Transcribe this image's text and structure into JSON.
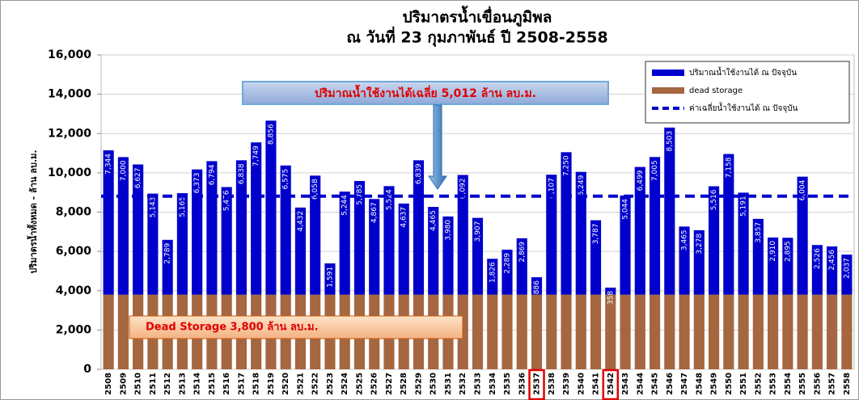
{
  "chart_data": {
    "type": "stacked_bar",
    "title": "ปริมาตรน้ำเขื่อนภูมิพล",
    "subtitle": "ณ วันที่ 23 กุมภาพันธ์ ปี 2508-2558",
    "y_label": "ปริมาตรน้ำทั้งหมด - ล้าน ลบ.ม.",
    "categories": [
      "2508",
      "2509",
      "2510",
      "2511",
      "2512",
      "2513",
      "2514",
      "2515",
      "2516",
      "2517",
      "2518",
      "2519",
      "2520",
      "2521",
      "2522",
      "2523",
      "2524",
      "2525",
      "2526",
      "2527",
      "2528",
      "2529",
      "2530",
      "2531",
      "2532",
      "2533",
      "2534",
      "2535",
      "2536",
      "2537",
      "2538",
      "2539",
      "2540",
      "2541",
      "2542",
      "2543",
      "2544",
      "2545",
      "2546",
      "2547",
      "2548",
      "2549",
      "2550",
      "2551",
      "2552",
      "2553",
      "2554",
      "2555",
      "2556",
      "2557",
      "2558"
    ],
    "highlight": [
      "2537",
      "2542"
    ],
    "series": [
      {
        "name": "dead storage",
        "color": "#a5673f",
        "values": [
          3800,
          3800,
          3800,
          3800,
          3800,
          3800,
          3800,
          3800,
          3800,
          3800,
          3800,
          3800,
          3800,
          3800,
          3800,
          3800,
          3800,
          3800,
          3800,
          3800,
          3800,
          3800,
          3800,
          3800,
          3800,
          3800,
          3800,
          3800,
          3800,
          3800,
          3800,
          3800,
          3800,
          3800,
          3800,
          3800,
          3800,
          3800,
          3800,
          3800,
          3800,
          3800,
          3800,
          3800,
          3800,
          3800,
          3800,
          3800,
          3800,
          3800,
          3800
        ]
      },
      {
        "name": "ปริมาณน้ำใช้งานได้ ณ ปัจจุบัน",
        "color": "#0000cc",
        "values": [
          7344,
          7000,
          6627,
          5143,
          2789,
          5165,
          6373,
          6794,
          5476,
          6838,
          7749,
          8856,
          6575,
          4432,
          6058,
          1591,
          5244,
          5785,
          4867,
          5524,
          4637,
          6839,
          4465,
          3980,
          6092,
          3907,
          1826,
          2289,
          2869,
          886,
          6107,
          7250,
          6249,
          3787,
          358,
          5044,
          6499,
          7005,
          8503,
          3465,
          3278,
          5516,
          7158,
          5191,
          3857,
          2910,
          2895,
          6004,
          2526,
          2456,
          2037
        ],
        "value_labels": [
          "7,344",
          "7,000",
          "6,627",
          "5,143",
          "2,789",
          "5,165",
          "6,373",
          "6,794",
          "5,476",
          "6,838",
          "7,749",
          "8,856",
          "6,575",
          "4,432",
          "6,058",
          "1,591",
          "5,244",
          "5,785",
          "4,867",
          "5,524",
          "4,637",
          "6,839",
          "4,465",
          "3,980",
          "6,092",
          "3,907",
          "1,826",
          "2,289",
          "2,869",
          "886",
          "6,107",
          "7,250",
          "6,249",
          "3,787",
          "358",
          "5,044",
          "6,499",
          "7,005",
          "8,503",
          "3,465",
          "3,278",
          "5,516",
          "7,158",
          "5,191",
          "3,857",
          "2,910",
          "2,895",
          "6,004",
          "2,526",
          "2,456",
          "2,037"
        ]
      }
    ],
    "reference_line": {
      "name": "ค่าเฉลี่ยน้ำใช้งานได้ ณ ปัจจุบัน",
      "value": 8812,
      "color": "#0000cc"
    },
    "annotations": [
      "ปริมาณน้ำใช้งานได้เฉลี่ย 5,012 ล้าน ลบ.ม.",
      "Dead Storage 3,800 ล้าน ลบ.ม."
    ],
    "ylim": [
      0,
      16000
    ],
    "yticks": [
      {
        "value": 0,
        "label": "0"
      },
      {
        "value": 2000,
        "label": "2,000"
      },
      {
        "value": 4000,
        "label": "4,000"
      },
      {
        "value": 6000,
        "label": "6,000"
      },
      {
        "value": 8000,
        "label": "8,000"
      },
      {
        "value": 10000,
        "label": "10,000"
      },
      {
        "value": 12000,
        "label": "12,000"
      },
      {
        "value": 14000,
        "label": "14,000"
      },
      {
        "value": 16000,
        "label": "16,000"
      }
    ],
    "grid": true,
    "legend": "top-right"
  }
}
